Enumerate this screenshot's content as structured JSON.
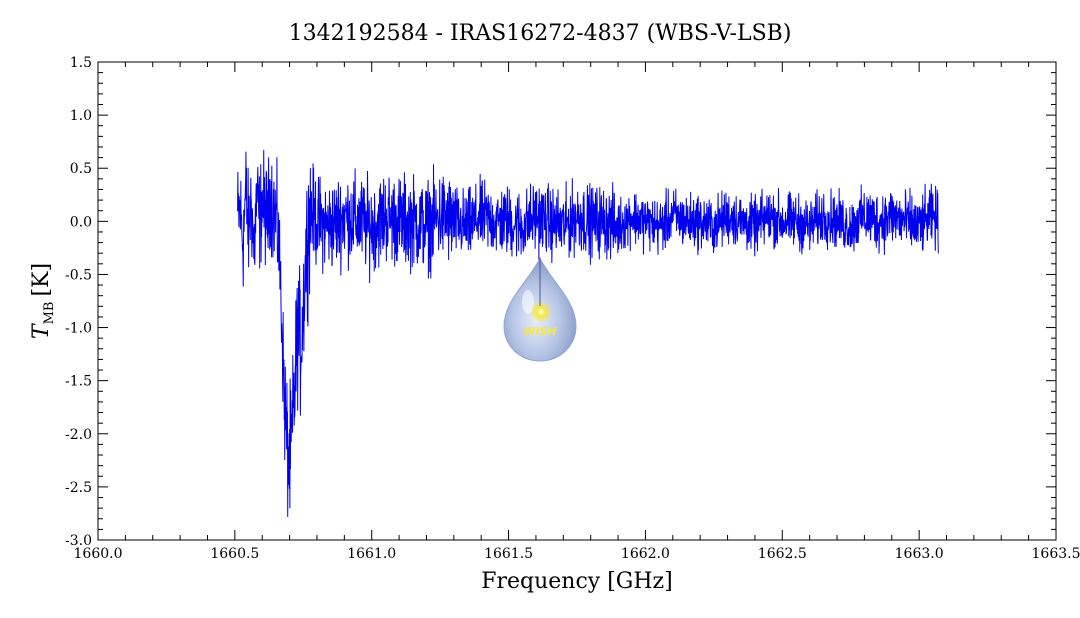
{
  "chart_data": {
    "type": "line",
    "title": "1342192584 - IRAS16272-4837 (WBS-V-LSB)",
    "xlabel": "Frequency [GHz]",
    "ylabel_main": "T",
    "ylabel_sub": "MB",
    "ylabel_unit": "[K]",
    "xlim": [
      1660.0,
      1663.5
    ],
    "ylim": [
      -3.0,
      1.5
    ],
    "x_ticks": [
      "1660.0",
      "1660.5",
      "1661.0",
      "1661.5",
      "1662.0",
      "1662.5",
      "1663.0",
      "1663.5"
    ],
    "y_ticks": [
      "1.5",
      "1.0",
      "0.5",
      "0.0",
      "-0.5",
      "-1.0",
      "-1.5",
      "-2.0",
      "-2.5",
      "-3.0"
    ],
    "grid": false,
    "line_color": "#0000ee",
    "series": [
      {
        "x": [
          1660.51,
          1660.52,
          1660.53,
          1660.54,
          1660.55,
          1660.56,
          1660.57,
          1660.58,
          1660.59,
          1660.6,
          1660.61,
          1660.62,
          1660.63,
          1660.64,
          1660.65,
          1660.66,
          1660.67,
          1660.68,
          1660.69,
          1660.7,
          1660.71,
          1660.72,
          1660.73,
          1660.74,
          1660.75,
          1660.76,
          1660.77,
          1660.78,
          1660.8,
          1660.85,
          1660.9,
          1660.95,
          1661.0,
          1661.05,
          1661.1,
          1661.15,
          1661.2,
          1661.25,
          1661.3,
          1661.35,
          1661.4,
          1661.45,
          1661.5,
          1661.55,
          1661.6,
          1661.65,
          1661.7,
          1661.75,
          1661.8,
          1661.85,
          1661.9,
          1661.95,
          1662.0,
          1662.05,
          1662.1,
          1662.15,
          1662.2,
          1662.25,
          1662.3,
          1662.35,
          1662.4,
          1662.45,
          1662.5,
          1662.55,
          1662.6,
          1662.65,
          1662.7,
          1662.75,
          1662.8,
          1662.85,
          1662.9,
          1662.95,
          1663.0,
          1663.05,
          1663.07
        ],
        "y": [
          0.05,
          0.1,
          -0.2,
          0.3,
          -0.1,
          0.2,
          -0.3,
          0.25,
          0.0,
          0.2,
          0.1,
          0.0,
          0.3,
          0.1,
          0.05,
          -0.2,
          -0.8,
          -1.6,
          -2.1,
          -2.3,
          -2.0,
          -1.5,
          -1.0,
          -1.2,
          -0.8,
          -0.3,
          0.0,
          0.1,
          0.0,
          -0.05,
          0.05,
          0.0,
          -0.05,
          0.05,
          0.0,
          0.0,
          -0.05,
          0.05,
          0.0,
          -0.05,
          0.05,
          0.0,
          0.0,
          -0.05,
          0.05,
          0.0,
          -0.05,
          0.05,
          0.0,
          0.0,
          -0.05,
          0.05,
          0.0,
          -0.05,
          0.05,
          0.0,
          0.0,
          -0.05,
          0.05,
          0.0,
          -0.05,
          0.05,
          0.0,
          0.0,
          -0.05,
          0.05,
          0.0,
          -0.05,
          0.05,
          0.0,
          0.05,
          0.0,
          -0.05,
          0.05,
          0.0
        ]
      }
    ]
  },
  "logo": {
    "text": "WISH",
    "colors": {
      "drop": "#9fb3dd",
      "glow": "#f5e83a"
    }
  }
}
